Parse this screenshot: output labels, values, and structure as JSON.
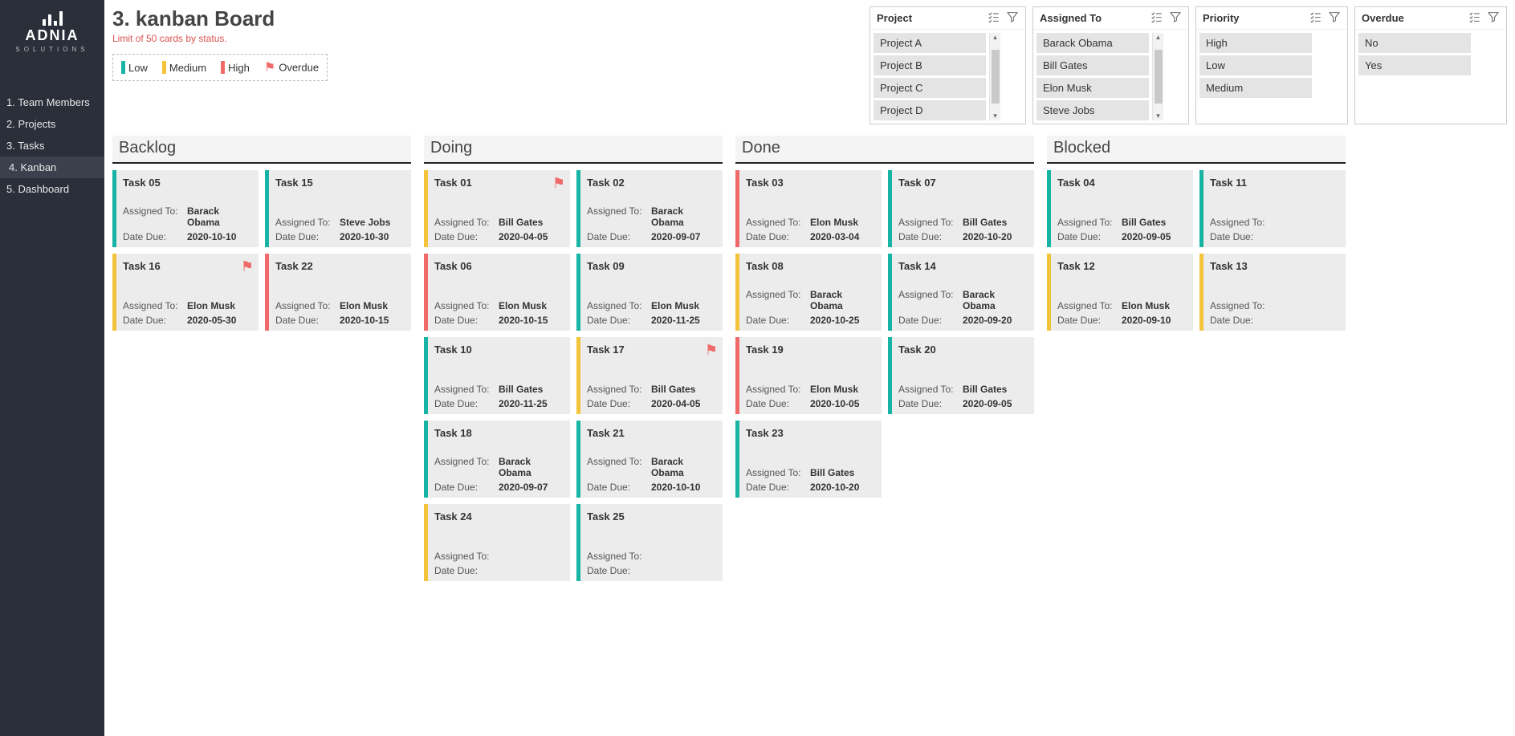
{
  "brand": {
    "name": "ADNIA",
    "sub": "SOLUTIONS"
  },
  "nav": {
    "items": [
      {
        "label": "1. Team Members"
      },
      {
        "label": "2. Projects"
      },
      {
        "label": "3. Tasks"
      },
      {
        "label": "4. Kanban",
        "active": true
      },
      {
        "label": "5. Dashboard"
      }
    ]
  },
  "header": {
    "title": "3. kanban Board",
    "subtitle": "Limit of 50 cards by status."
  },
  "legend": {
    "low": {
      "label": "Low",
      "color": "#17b4a3"
    },
    "medium": {
      "label": "Medium",
      "color": "#f2c33b"
    },
    "high": {
      "label": "High",
      "color": "#f06a6a"
    },
    "overdue": {
      "label": "Overdue",
      "color": "#f06a6a"
    }
  },
  "labels": {
    "assigned_to": "Assigned To:",
    "date_due": "Date Due:"
  },
  "colors": {
    "low": "#17b4a3",
    "medium": "#f2c33b",
    "high": "#f06a6a",
    "card_bg": "#ececec",
    "column_header_bg": "#f4f4f4",
    "column_header_underline": "#222222",
    "sidebar_bg": "#2b2f3a"
  },
  "filters": [
    {
      "title": "Project",
      "scroll": true,
      "options": [
        "Project A",
        "Project B",
        "Project C",
        "Project D"
      ]
    },
    {
      "title": "Assigned To",
      "scroll": true,
      "options": [
        "Barack Obama",
        "Bill Gates",
        "Elon Musk",
        "Steve Jobs"
      ]
    },
    {
      "title": "Priority",
      "scroll": false,
      "options": [
        "High",
        "Low",
        "Medium"
      ]
    },
    {
      "title": "Overdue",
      "scroll": false,
      "options": [
        "No",
        "Yes"
      ]
    }
  ],
  "columns": [
    {
      "title": "Backlog",
      "cards": [
        {
          "title": "Task 05",
          "assigned": "Barack Obama",
          "due": "2020-10-10",
          "priority": "low"
        },
        {
          "title": "Task 15",
          "assigned": "Steve Jobs",
          "due": "2020-10-30",
          "priority": "low"
        },
        {
          "title": "Task 16",
          "assigned": "Elon Musk",
          "due": "2020-05-30",
          "priority": "medium",
          "overdue": true
        },
        {
          "title": "Task 22",
          "assigned": "Elon Musk",
          "due": "2020-10-15",
          "priority": "high"
        }
      ]
    },
    {
      "title": "Doing",
      "cards": [
        {
          "title": "Task 01",
          "assigned": "Bill Gates",
          "due": "2020-04-05",
          "priority": "medium",
          "overdue": true
        },
        {
          "title": "Task 02",
          "assigned": "Barack Obama",
          "due": "2020-09-07",
          "priority": "low"
        },
        {
          "title": "Task 06",
          "assigned": "Elon Musk",
          "due": "2020-10-15",
          "priority": "high"
        },
        {
          "title": "Task 09",
          "assigned": "Elon Musk",
          "due": "2020-11-25",
          "priority": "low"
        },
        {
          "title": "Task 10",
          "assigned": "Bill Gates",
          "due": "2020-11-25",
          "priority": "low"
        },
        {
          "title": "Task 17",
          "assigned": "Bill Gates",
          "due": "2020-04-05",
          "priority": "medium",
          "overdue": true
        },
        {
          "title": "Task 18",
          "assigned": "Barack Obama",
          "due": "2020-09-07",
          "priority": "low"
        },
        {
          "title": "Task 21",
          "assigned": "Barack Obama",
          "due": "2020-10-10",
          "priority": "low"
        },
        {
          "title": "Task 24",
          "assigned": "",
          "due": "",
          "priority": "medium"
        },
        {
          "title": "Task 25",
          "assigned": "",
          "due": "",
          "priority": "low"
        }
      ]
    },
    {
      "title": "Done",
      "cards": [
        {
          "title": "Task 03",
          "assigned": "Elon Musk",
          "due": "2020-03-04",
          "priority": "high"
        },
        {
          "title": "Task 07",
          "assigned": "Bill Gates",
          "due": "2020-10-20",
          "priority": "low"
        },
        {
          "title": "Task 08",
          "assigned": "Barack Obama",
          "due": "2020-10-25",
          "priority": "medium"
        },
        {
          "title": "Task 14",
          "assigned": "Barack Obama",
          "due": "2020-09-20",
          "priority": "low"
        },
        {
          "title": "Task 19",
          "assigned": "Elon Musk",
          "due": "2020-10-05",
          "priority": "high"
        },
        {
          "title": "Task 20",
          "assigned": "Bill Gates",
          "due": "2020-09-05",
          "priority": "low"
        },
        {
          "title": "Task 23",
          "assigned": "Bill Gates",
          "due": "2020-10-20",
          "priority": "low"
        }
      ]
    },
    {
      "title": "Blocked",
      "cards": [
        {
          "title": "Task 04",
          "assigned": "Bill Gates",
          "due": "2020-09-05",
          "priority": "low"
        },
        {
          "title": "Task 11",
          "assigned": "",
          "due": "",
          "priority": "low",
          "clipped": true
        },
        {
          "title": "Task 12",
          "assigned": "Elon Musk",
          "due": "2020-09-10",
          "priority": "medium"
        },
        {
          "title": "Task 13",
          "assigned": "",
          "due": "",
          "priority": "medium",
          "clipped": true
        }
      ]
    }
  ]
}
